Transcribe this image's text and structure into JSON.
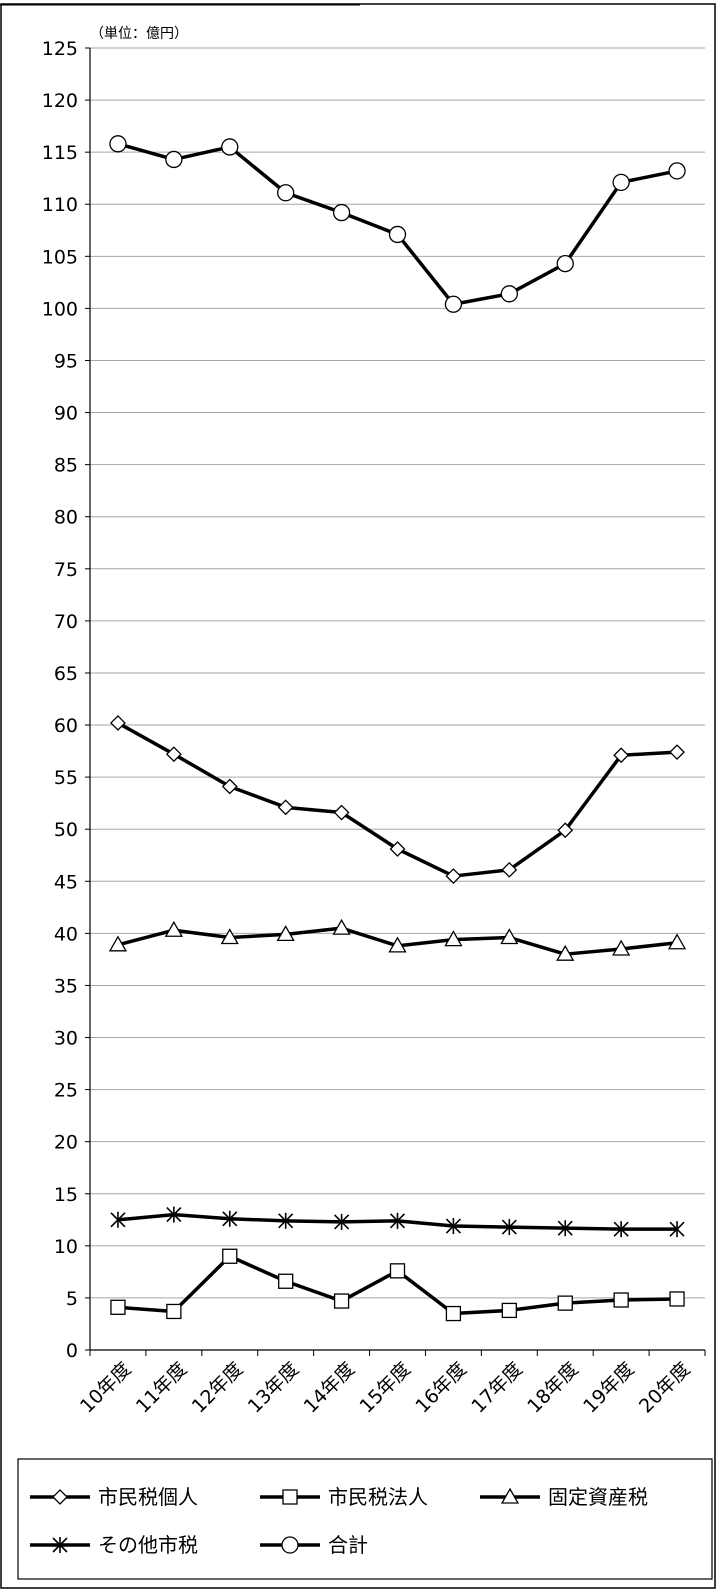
{
  "chart_data": {
    "type": "line",
    "unit_note": "（単位：億円）",
    "categories": [
      "10年度",
      "11年度",
      "12年度",
      "13年度",
      "14年度",
      "15年度",
      "16年度",
      "17年度",
      "18年度",
      "19年度",
      "20年度"
    ],
    "y_ticks": [
      "0",
      "5",
      "10",
      "15",
      "20",
      "25",
      "30",
      "35",
      "40",
      "45",
      "50",
      "55",
      "60",
      "65",
      "70",
      "75",
      "80",
      "85",
      "90",
      "95",
      "100",
      "105",
      "110",
      "115",
      "120",
      "125"
    ],
    "ylim": [
      0,
      125
    ],
    "grid": true,
    "legend_position": "bottom",
    "series": [
      {
        "name": "市民税個人",
        "marker": "diamond",
        "values": [
          60.2,
          57.2,
          54.1,
          52.1,
          51.6,
          48.1,
          45.5,
          46.1,
          49.9,
          57.1,
          57.4
        ]
      },
      {
        "name": "市民税法人",
        "marker": "square",
        "values": [
          4.1,
          3.7,
          9.0,
          6.6,
          4.7,
          7.6,
          3.5,
          3.8,
          4.5,
          4.8,
          4.9
        ]
      },
      {
        "name": "固定資産税",
        "marker": "triangle",
        "values": [
          38.9,
          40.3,
          39.6,
          39.9,
          40.5,
          38.8,
          39.4,
          39.6,
          38.0,
          38.5,
          39.1
        ]
      },
      {
        "name": "その他市税",
        "marker": "star",
        "values": [
          12.5,
          13.0,
          12.6,
          12.4,
          12.3,
          12.4,
          11.9,
          11.8,
          11.7,
          11.6,
          11.6
        ]
      },
      {
        "name": "合計",
        "marker": "circle",
        "values": [
          115.8,
          114.3,
          115.5,
          111.1,
          109.2,
          107.1,
          100.4,
          101.4,
          104.3,
          112.1,
          113.2
        ]
      }
    ],
    "colors": {
      "line": "#000000",
      "grid": "#a6a6a6",
      "marker_fill": "#ffffff"
    }
  }
}
